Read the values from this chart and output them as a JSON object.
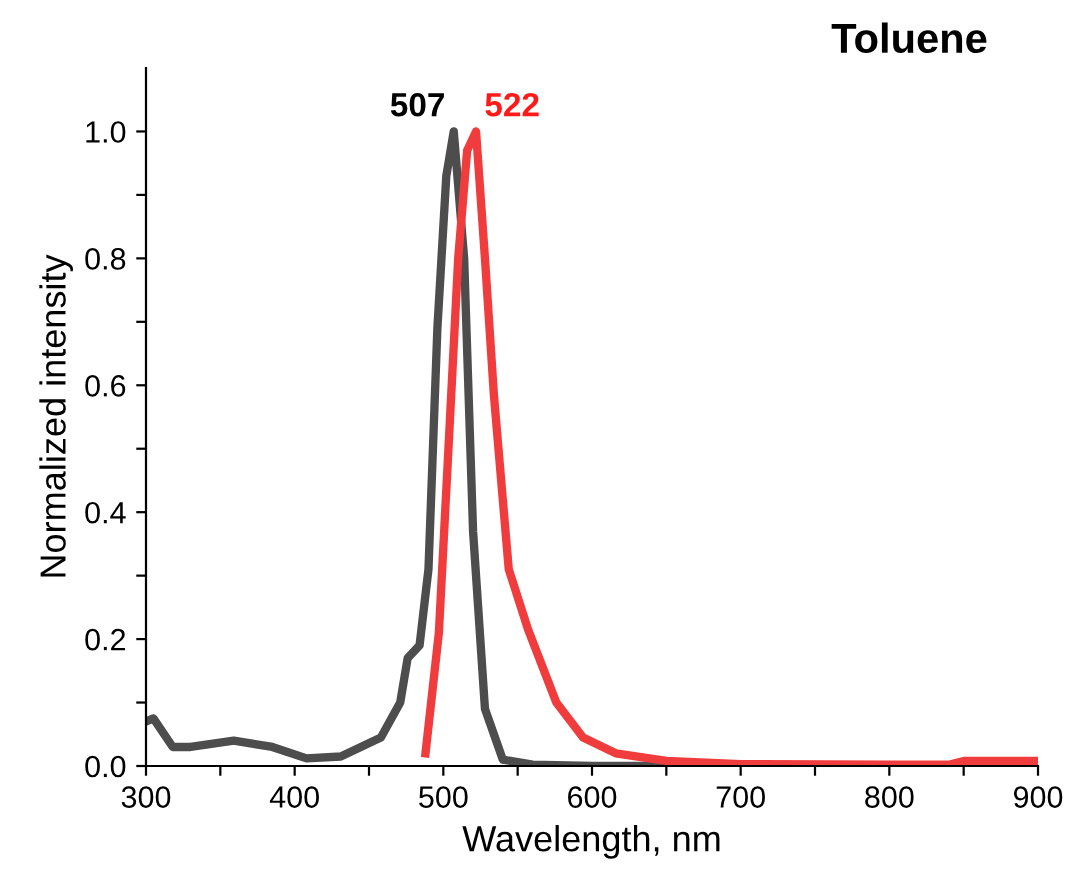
{
  "chart_data": {
    "type": "line",
    "title": "Toluene",
    "xlabel": "Wavelength, nm",
    "ylabel": "Normalized intensity",
    "xlim": [
      300,
      900
    ],
    "ylim": [
      0,
      1.1
    ],
    "xticks": [
      300,
      {
        "value": 350,
        "label": null
      },
      400,
      {
        "value": 450,
        "label": null
      },
      500,
      {
        "value": 550,
        "label": null
      },
      600,
      {
        "value": 650,
        "label": null
      },
      700,
      {
        "value": 750,
        "label": null
      },
      800,
      {
        "value": 850,
        "label": null
      },
      900
    ],
    "yticks": [
      {
        "value": 0,
        "label": "0.0"
      },
      {
        "value": 0.1,
        "label": null
      },
      0.2,
      {
        "value": 0.3,
        "label": null
      },
      0.4,
      {
        "value": 0.5,
        "label": null
      },
      0.6,
      {
        "value": 0.7,
        "label": null
      },
      0.8,
      {
        "value": 0.9,
        "label": null
      },
      {
        "value": 1,
        "label": "1.0"
      }
    ],
    "grid": false,
    "legend": false,
    "marker": "none",
    "line_style": "solid",
    "series": [
      {
        "color": "#4d4d4d",
        "x": [
          300,
          305,
          318,
          330,
          359,
          385,
          408,
          431,
          458,
          471,
          476,
          484,
          490,
          496,
          502,
          507,
          514,
          520,
          528,
          540,
          560,
          600,
          700,
          800,
          900
        ],
        "values": [
          0.07,
          0.075,
          0.03,
          0.03,
          0.04,
          0.03,
          0.012,
          0.015,
          0.045,
          0.1,
          0.17,
          0.19,
          0.31,
          0.69,
          0.93,
          1.0,
          0.8,
          0.37,
          0.09,
          0.01,
          0.002,
          0.0,
          0.0,
          0.0,
          0.0
        ]
      },
      {
        "color": "#f03c3c",
        "x": [
          488,
          497,
          503,
          510,
          516,
          522,
          528,
          534,
          544,
          557,
          576,
          594,
          616,
          650,
          700,
          800,
          840,
          850,
          900
        ],
        "values": [
          0.02,
          0.21,
          0.48,
          0.8,
          0.97,
          1.0,
          0.8,
          0.585,
          0.31,
          0.215,
          0.1,
          0.045,
          0.02,
          0.008,
          0.003,
          0.002,
          0.002,
          0.008,
          0.008
        ]
      }
    ],
    "annotations": [
      {
        "text": "507",
        "x": 507,
        "y": 1.0
      },
      {
        "text": "522",
        "x": 522,
        "y": 1.0
      }
    ]
  }
}
